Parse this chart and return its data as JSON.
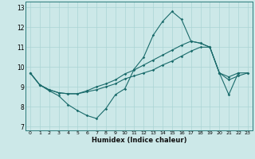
{
  "xlabel": "Humidex (Indice chaleur)",
  "xlim": [
    -0.5,
    23.5
  ],
  "ylim": [
    6.8,
    13.3
  ],
  "yticks": [
    7,
    8,
    9,
    10,
    11,
    12,
    13
  ],
  "xticks": [
    0,
    1,
    2,
    3,
    4,
    5,
    6,
    7,
    8,
    9,
    10,
    11,
    12,
    13,
    14,
    15,
    16,
    17,
    18,
    19,
    20,
    21,
    22,
    23
  ],
  "bg_color": "#cce8e8",
  "line_color": "#1a6b6b",
  "grid_color": "#aad4d4",
  "line1_x": [
    0,
    1,
    2,
    3,
    4,
    5,
    6,
    7,
    8,
    9,
    10,
    11,
    12,
    13,
    14,
    15,
    16,
    17,
    18,
    19,
    20,
    21,
    22
  ],
  "line1_y": [
    9.7,
    9.1,
    8.8,
    8.55,
    8.1,
    7.8,
    7.55,
    7.4,
    7.9,
    8.6,
    8.9,
    9.9,
    10.5,
    11.6,
    12.3,
    12.8,
    12.4,
    11.3,
    11.2,
    11.0,
    9.7,
    8.6,
    9.7
  ],
  "line2_x": [
    0,
    1,
    2,
    3,
    4,
    5,
    6,
    7,
    8,
    9,
    10,
    11,
    12,
    13,
    14,
    15,
    16,
    17,
    18,
    19,
    20,
    21,
    22,
    23
  ],
  "line2_y": [
    9.7,
    9.1,
    8.85,
    8.7,
    8.65,
    8.65,
    8.8,
    9.0,
    9.15,
    9.35,
    9.65,
    9.85,
    10.1,
    10.35,
    10.6,
    10.85,
    11.1,
    11.3,
    11.2,
    11.0,
    9.7,
    9.5,
    9.7,
    9.7
  ],
  "line3_x": [
    0,
    1,
    2,
    3,
    4,
    5,
    6,
    7,
    8,
    9,
    10,
    11,
    12,
    13,
    14,
    15,
    16,
    17,
    18,
    19,
    20,
    21,
    22,
    23
  ],
  "line3_y": [
    9.7,
    9.1,
    8.85,
    8.7,
    8.65,
    8.65,
    8.75,
    8.85,
    9.0,
    9.15,
    9.4,
    9.55,
    9.7,
    9.85,
    10.1,
    10.3,
    10.55,
    10.8,
    11.0,
    11.0,
    9.7,
    9.35,
    9.55,
    9.7
  ]
}
